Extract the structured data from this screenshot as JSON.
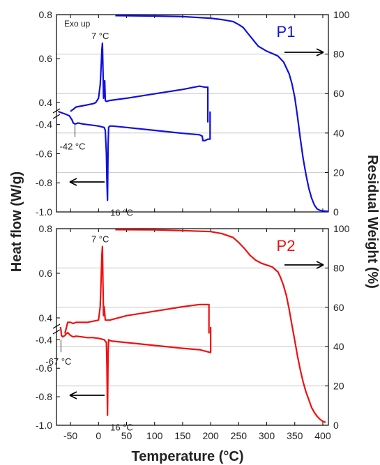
{
  "axis_titles": {
    "x": "Temperature (°C)",
    "y_left": "Heat flow (W/g)",
    "y_right": "Residual Weight (%)"
  },
  "chart_data": [
    {
      "type": "line",
      "panel_label": "P1",
      "color": "#1010e0",
      "exo_note": "Exo up",
      "xlim": [
        -75,
        410
      ],
      "ylim_left_upper": [
        0.3,
        0.8
      ],
      "ylim_left_lower": [
        -1.0,
        -0.3
      ],
      "ylim_right": [
        0,
        100
      ],
      "left_ticks": [
        "0.8",
        "0.6",
        "0.4",
        "-0.4",
        "-0.6",
        "-0.8",
        "-1.0"
      ],
      "right_ticks": [
        "100",
        "80",
        "60",
        "40",
        "20",
        "0"
      ],
      "x_ticks": [
        "-50",
        "0",
        "50",
        "100",
        "150",
        "200",
        "250",
        "300",
        "350",
        "400"
      ],
      "annotations": [
        {
          "text": "7 °C",
          "x": 7,
          "y": 0.67,
          "axis": "heat_flow"
        },
        {
          "text": "-42 °C",
          "x": -42,
          "y": -0.38,
          "axis": "heat_flow"
        },
        {
          "text": "16 °C",
          "x": 16,
          "y": -0.92,
          "axis": "heat_flow"
        }
      ],
      "arrows": [
        {
          "direction": "left",
          "refers_to": "left_axis"
        },
        {
          "direction": "right",
          "refers_to": "right_axis"
        }
      ],
      "series": [
        {
          "axis": "right",
          "x": [
            30,
            100,
            150,
            200,
            220,
            240,
            250,
            258,
            265,
            275,
            285,
            300,
            310,
            320,
            330,
            340,
            345,
            350,
            355,
            360,
            365,
            370,
            375,
            380,
            385,
            390,
            395,
            400,
            405,
            410
          ],
          "y": [
            99.5,
            99.3,
            99.0,
            98.2,
            97.5,
            96.5,
            95.0,
            93.5,
            91.0,
            87.5,
            84.0,
            81.5,
            80.3,
            79.0,
            76.0,
            70.0,
            65.0,
            58.0,
            48.0,
            37.0,
            27.0,
            19.0,
            12.0,
            7.0,
            3.5,
            1.5,
            0.8,
            0.5,
            0.4,
            0.3
          ]
        },
        {
          "axis": "left",
          "x": [
            -50,
            -45,
            -40,
            -30,
            -20,
            -10,
            -5,
            0,
            3,
            5,
            6,
            7,
            8,
            9,
            10,
            11,
            12,
            14,
            20,
            50,
            100,
            150,
            180,
            190,
            195,
            195
          ],
          "y": [
            0.36,
            0.37,
            0.38,
            0.385,
            0.39,
            0.395,
            0.4,
            0.42,
            0.48,
            0.58,
            0.64,
            0.67,
            0.55,
            0.42,
            0.48,
            0.5,
            0.41,
            0.405,
            0.41,
            0.42,
            0.44,
            0.46,
            0.475,
            0.47,
            0.47,
            0.31
          ]
        },
        {
          "axis": "left",
          "x": [
            -72,
            -65,
            -58,
            -52,
            -47,
            -45,
            -42,
            -40,
            -38,
            -35,
            -30,
            -20,
            -10,
            0,
            10,
            12,
            14,
            15,
            16,
            17,
            18,
            20,
            25,
            50,
            100,
            150,
            180,
            185,
            186,
            190,
            195,
            199,
            199
          ],
          "y": [
            -0.31,
            -0.32,
            -0.33,
            -0.34,
            -0.37,
            -0.39,
            -0.395,
            -0.395,
            -0.39,
            -0.39,
            -0.395,
            -0.4,
            -0.405,
            -0.41,
            -0.42,
            -0.44,
            -0.6,
            -0.8,
            -0.92,
            -0.55,
            -0.42,
            -0.41,
            -0.41,
            -0.42,
            -0.44,
            -0.46,
            -0.47,
            -0.48,
            -0.51,
            -0.51,
            -0.5,
            -0.5,
            -0.31
          ]
        }
      ]
    },
    {
      "type": "line",
      "panel_label": "P2",
      "color": "#f01010",
      "xlim": [
        -75,
        410
      ],
      "ylim_left_upper": [
        0.3,
        0.8
      ],
      "ylim_left_lower": [
        -1.0,
        -0.3
      ],
      "ylim_right": [
        0,
        100
      ],
      "left_ticks": [
        "0.8",
        "0.6",
        "0.4",
        "-0.4",
        "-0.6",
        "-0.8",
        "-1.0"
      ],
      "right_ticks": [
        "100",
        "80",
        "60",
        "40",
        "20",
        "0"
      ],
      "x_ticks": [
        "-50",
        "0",
        "50",
        "100",
        "150",
        "200",
        "250",
        "300",
        "350",
        "400"
      ],
      "annotations": [
        {
          "text": "7 °C",
          "x": 7,
          "y": 0.72,
          "axis": "heat_flow"
        },
        {
          "text": "-67 °C",
          "x": -67,
          "y": -0.38,
          "axis": "heat_flow"
        },
        {
          "text": "16 °C",
          "x": 16,
          "y": -0.93,
          "axis": "heat_flow"
        }
      ],
      "arrows": [
        {
          "direction": "left",
          "refers_to": "left_axis"
        },
        {
          "direction": "right",
          "refers_to": "right_axis"
        }
      ],
      "series": [
        {
          "axis": "right",
          "x": [
            30,
            100,
            150,
            200,
            220,
            240,
            250,
            260,
            270,
            280,
            290,
            300,
            310,
            320,
            325,
            330,
            335,
            340,
            345,
            350,
            355,
            360,
            365,
            370,
            375,
            380,
            385,
            390,
            395,
            400,
            405
          ],
          "y": [
            99.5,
            99.4,
            99.0,
            98.5,
            97.5,
            95.5,
            93.0,
            90.0,
            86.5,
            84.0,
            82.5,
            81.5,
            80.5,
            78.0,
            75.0,
            71.0,
            66.0,
            59.0,
            51.0,
            43.0,
            35.0,
            28.0,
            22.0,
            17.0,
            13.0,
            9.0,
            6.5,
            4.5,
            3.0,
            2.0,
            1.5
          ]
        },
        {
          "axis": "left",
          "x": [
            -60,
            -57,
            -55,
            -50,
            -45,
            -40,
            -30,
            -20,
            -10,
            0,
            3,
            5,
            6,
            7,
            8,
            9,
            10,
            12,
            20,
            50,
            100,
            150,
            180,
            190,
            197,
            197
          ],
          "y": [
            0.33,
            0.36,
            0.38,
            0.38,
            0.375,
            0.38,
            0.38,
            0.38,
            0.385,
            0.39,
            0.45,
            0.6,
            0.68,
            0.72,
            0.55,
            0.41,
            0.45,
            0.39,
            0.39,
            0.41,
            0.43,
            0.45,
            0.46,
            0.46,
            0.46,
            0.33
          ]
        },
        {
          "axis": "left",
          "x": [
            -68,
            -67,
            -66,
            -64,
            -60,
            -58,
            -55,
            -50,
            -45,
            -40,
            -30,
            -20,
            -10,
            0,
            10,
            14,
            15,
            16,
            17,
            18,
            20,
            25,
            50,
            100,
            150,
            180,
            200,
            200
          ],
          "y": [
            -0.31,
            -0.33,
            -0.37,
            -0.38,
            -0.37,
            -0.36,
            -0.35,
            -0.37,
            -0.38,
            -0.375,
            -0.38,
            -0.385,
            -0.385,
            -0.39,
            -0.4,
            -0.42,
            -0.6,
            -0.93,
            -0.5,
            -0.4,
            -0.405,
            -0.41,
            -0.42,
            -0.44,
            -0.46,
            -0.47,
            -0.49,
            -0.31
          ]
        }
      ]
    }
  ]
}
